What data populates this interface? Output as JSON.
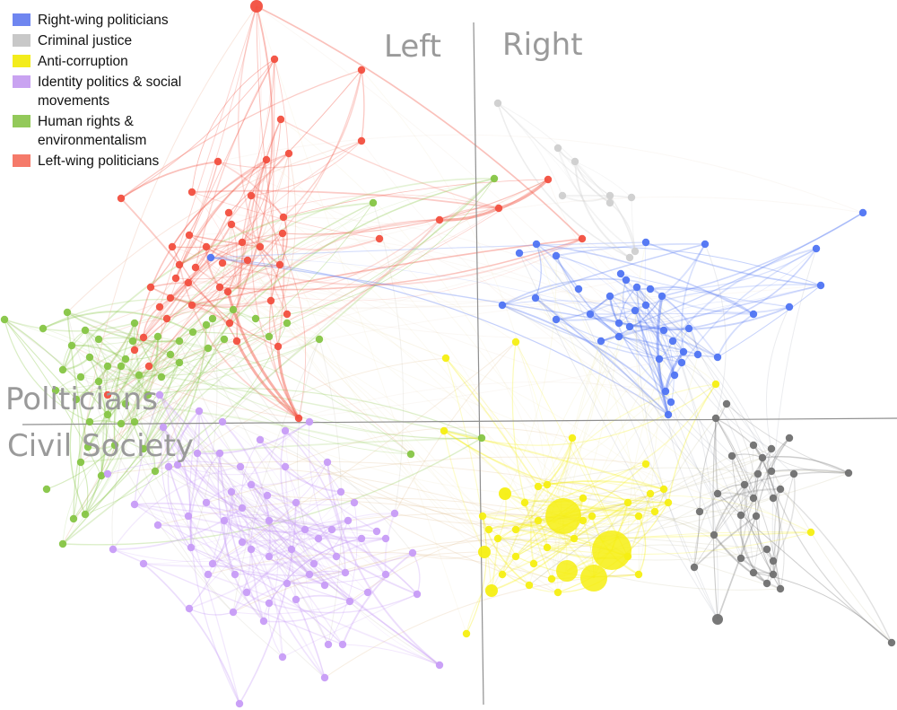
{
  "legend": {
    "items": [
      {
        "label": "Right-wing politicians",
        "color": "#6f86f0"
      },
      {
        "label": "Criminal justice",
        "color": "#c8c8c8"
      },
      {
        "label": "Anti-corruption",
        "color": "#f3ec1c"
      },
      {
        "label": "Identity politics & social movements",
        "color": "#c9a3f1"
      },
      {
        "label": "Human rights & environmentalism",
        "color": "#93c95a"
      },
      {
        "label": "Left-wing politicians",
        "color": "#f57a6a"
      }
    ]
  },
  "quadrant_labels": {
    "left": "Left",
    "right": "Right",
    "top": "Politicians",
    "bottom": "Civil Society"
  },
  "colors": {
    "right_wing": "#4f74f3",
    "criminal_justice": "#cfcfcf",
    "criminal_justice_dark": "#707070",
    "anti_corruption": "#f6ef12",
    "identity": "#c79cf7",
    "human_rights": "#86c544",
    "left_wing": "#f24f3f",
    "axis": "#8f8f8f"
  }
}
